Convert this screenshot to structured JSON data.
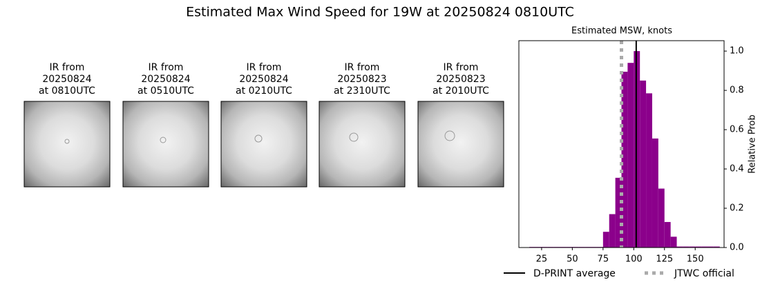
{
  "title": "Estimated Max Wind Speed for 19W at 20250824 0810UTC",
  "panels": [
    {
      "lines": [
        "IR from",
        "20250824",
        "at 0810UTC"
      ]
    },
    {
      "lines": [
        "IR from",
        "20250824",
        "at 0510UTC"
      ]
    },
    {
      "lines": [
        "IR from",
        "20250824",
        "at 0210UTC"
      ]
    },
    {
      "lines": [
        "IR from",
        "20250823",
        "at 2310UTC"
      ]
    },
    {
      "lines": [
        "IR from",
        "20250823",
        "at 2010UTC"
      ]
    }
  ],
  "chart_data": {
    "type": "histogram",
    "title": "Estimated MSW, knots",
    "ylabel": "Relative Prob",
    "color": "#8b008b",
    "bins": [
      15,
      20,
      25,
      30,
      35,
      40,
      45,
      50,
      55,
      60,
      65,
      70,
      75,
      80,
      85,
      90,
      95,
      100,
      105,
      110,
      115,
      120,
      125,
      130,
      135,
      140,
      145,
      150,
      155,
      160,
      165,
      170
    ],
    "values": [
      0.003,
      0.003,
      0.003,
      0.003,
      0.003,
      0.003,
      0.003,
      0.003,
      0.003,
      0.003,
      0.003,
      0.003,
      0.08,
      0.17,
      0.355,
      0.895,
      0.94,
      1.0,
      0.85,
      0.785,
      0.555,
      0.3,
      0.13,
      0.055,
      0.005,
      0.005,
      0.005,
      0.005,
      0.005,
      0.005,
      0.005
    ],
    "xlim": [
      6.5,
      173.5
    ],
    "xticks": [
      25,
      50,
      75,
      100,
      125,
      150
    ],
    "ylim": [
      0,
      1.053
    ],
    "yticks": [
      {
        "value": 0,
        "label": "0.0"
      },
      0.2,
      0.4,
      0.6,
      0.8,
      {
        "value": 1,
        "label": "1.0"
      }
    ],
    "lines": [
      {
        "name": "D-PRINT average",
        "value": 102,
        "color": "#000000",
        "style": "solid"
      },
      {
        "name": "JTWC official",
        "value": 90,
        "color": "#aaaaaa",
        "style": "dotted"
      }
    ]
  }
}
